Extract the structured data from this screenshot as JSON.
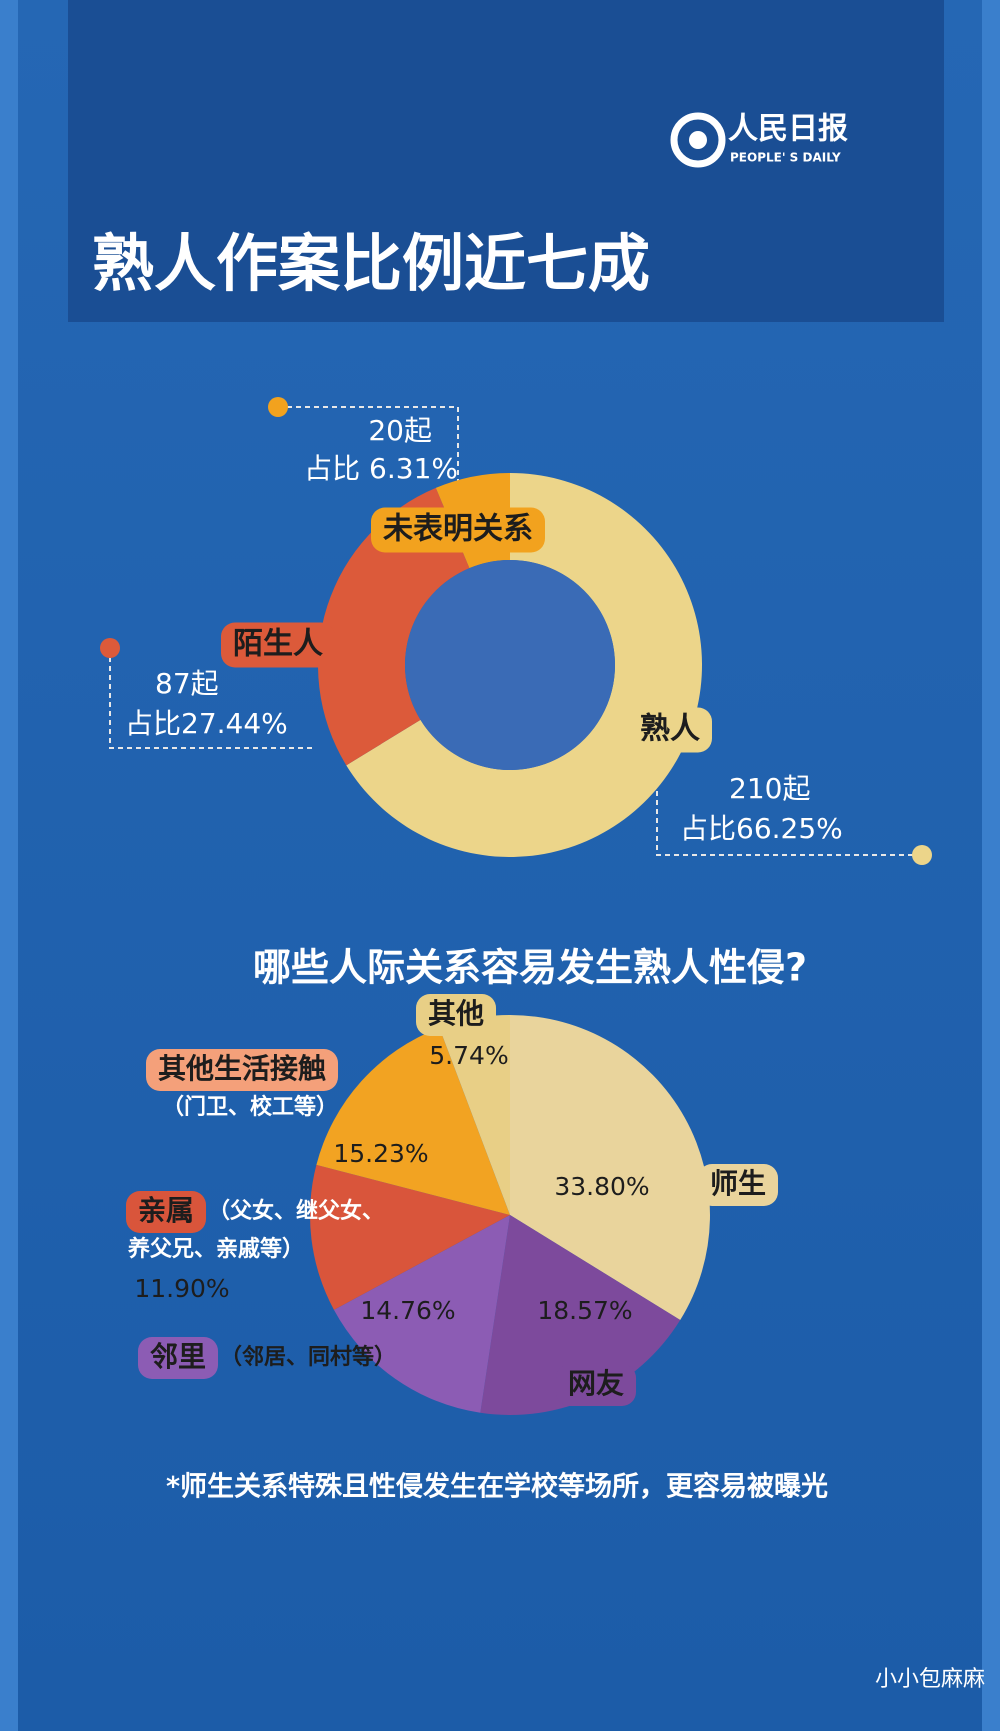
{
  "header": {
    "brand": "人民日报",
    "brand_en": "PEOPLE' S DAILY",
    "title": "熟人作案比例近七成"
  },
  "chart_data": [
    {
      "type": "donut",
      "categories": [
        "熟人",
        "陌生人",
        "未表明关系"
      ],
      "count_labels": [
        "210起",
        "87起",
        "20起"
      ],
      "values": [
        66.25,
        27.44,
        6.31
      ],
      "value_labels": [
        "占比66.25%",
        "占比27.44%",
        "占比 6.31%"
      ],
      "colors": [
        "#ecd58a",
        "#dc5a3a",
        "#f2a21e"
      ]
    },
    {
      "type": "pie",
      "title": "哪些人际关系容易发生熟人性侵?",
      "categories": [
        "师生",
        "网友",
        "邻里",
        "亲属",
        "其他生活接触",
        "其他"
      ],
      "category_notes": [
        null,
        null,
        [
          "（邻居、同村等）"
        ],
        [
          "（父女、继父女、",
          "养父兄、亲戚等）"
        ],
        [
          "（门卫、校工等）"
        ],
        null
      ],
      "values": [
        33.8,
        18.57,
        14.76,
        11.9,
        15.23,
        5.74
      ],
      "value_labels": [
        "33.80%",
        "18.57%",
        "14.76%",
        "11.90%",
        "15.23%",
        "5.74%"
      ],
      "colors": [
        "#e9d49c",
        "#7d4a9c",
        "#8c5cb4",
        "#d9553b",
        "#f2a322",
        "#e8cf86"
      ]
    }
  ],
  "footnote": "*师生关系特殊且性侵发生在学校等场所，更容易被曝光",
  "watermark": "小小包麻麻"
}
